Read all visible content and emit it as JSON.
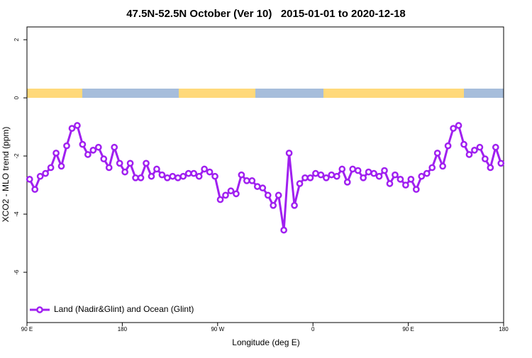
{
  "chart_data": {
    "type": "line",
    "title": "47.5N-52.5N October (Ver 10)   2015-01-01 to 2020-12-18",
    "x_label": "Longitude (deg E)",
    "y_label": "XCO2 - MLO trend (ppm)",
    "x": [
      92.5,
      97.5,
      102.5,
      107.5,
      112.5,
      117.5,
      122.5,
      127.5,
      132.5,
      137.5,
      142.5,
      147.5,
      152.5,
      157.5,
      162.5,
      167.5,
      172.5,
      177.5,
      182.5,
      187.5,
      192.5,
      197.5,
      202.5,
      207.5,
      212.5,
      217.5,
      222.5,
      227.5,
      232.5,
      237.5,
      242.5,
      247.5,
      252.5,
      257.5,
      262.5,
      267.5,
      272.5,
      277.5,
      282.5,
      287.5,
      292.5,
      297.5,
      302.5,
      307.5,
      312.5,
      317.5,
      322.5,
      327.5,
      332.5,
      337.5,
      342.5,
      347.5,
      352.5,
      357.5,
      362.5,
      367.5,
      372.5,
      377.5,
      382.5,
      387.5,
      392.5,
      397.5,
      402.5,
      407.5,
      412.5,
      417.5,
      422.5,
      427.5,
      432.5,
      437.5,
      442.5,
      447.5,
      452.5,
      457.5,
      462.5,
      467.5,
      472.5,
      477.5,
      482.5,
      487.5,
      492.5,
      497.5,
      502.5,
      507.5,
      512.5,
      517.5,
      522.5,
      527.5,
      532.5,
      537.5
    ],
    "series": [
      {
        "name": "Land (Nadir&Glint) and Ocean (Glint)",
        "color": "#a020f0",
        "values": [
          -2.8,
          -3.15,
          -2.7,
          -2.6,
          -2.4,
          -1.9,
          -2.35,
          -1.65,
          -1.05,
          -0.95,
          -1.6,
          -1.95,
          -1.8,
          -1.7,
          -2.1,
          -2.4,
          -1.7,
          -2.25,
          -2.55,
          -2.25,
          -2.75,
          -2.75,
          -2.25,
          -2.7,
          -2.45,
          -2.65,
          -2.75,
          -2.7,
          -2.75,
          -2.7,
          -2.6,
          -2.6,
          -2.7,
          -2.45,
          -2.55,
          -2.7,
          -3.5,
          -3.35,
          -3.2,
          -3.3,
          -2.65,
          -2.85,
          -2.85,
          -3.05,
          -3.1,
          -3.35,
          -3.7,
          -3.35,
          -4.55,
          -1.9,
          -3.7,
          -2.95,
          -2.75,
          -2.75,
          -2.6,
          -2.65,
          -2.75,
          -2.65,
          -2.7,
          -2.45,
          -2.9,
          -2.45,
          -2.5,
          -2.75,
          -2.55,
          -2.6,
          -2.7,
          -2.5,
          -2.95,
          -2.65,
          -2.8,
          -3.0,
          -2.8,
          -3.15,
          -2.7,
          -2.6,
          -2.4,
          -1.9,
          -2.35,
          -1.65,
          -1.05,
          -0.95,
          -1.6,
          -1.95,
          -1.8,
          -1.7,
          -2.1,
          -2.4,
          -1.7,
          -2.25
        ]
      }
    ],
    "xlim": [
      90,
      540
    ],
    "xticks": [
      {
        "value": 90,
        "label": "90 E"
      },
      {
        "value": 180,
        "label": "180"
      },
      {
        "value": 270,
        "label": "90 W"
      },
      {
        "value": 360,
        "label": "0"
      },
      {
        "value": 450,
        "label": "90 E"
      },
      {
        "value": 540,
        "label": "180"
      }
    ],
    "ylim": [
      -7.73,
      2.44
    ],
    "yticks": [
      -6,
      -4,
      -2,
      0,
      2
    ],
    "legend": "bottomleft"
  }
}
